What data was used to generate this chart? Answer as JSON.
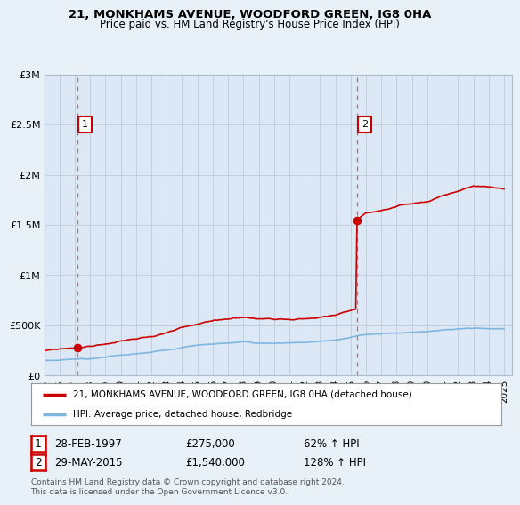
{
  "title1": "21, MONKHAMS AVENUE, WOODFORD GREEN, IG8 0HA",
  "title2": "Price paid vs. HM Land Registry's House Price Index (HPI)",
  "legend_line1": "21, MONKHAMS AVENUE, WOODFORD GREEN, IG8 0HA (detached house)",
  "legend_line2": "HPI: Average price, detached house, Redbridge",
  "annotation1_label": "1",
  "annotation1_date": "28-FEB-1997",
  "annotation1_price": "£275,000",
  "annotation1_hpi": "62% ↑ HPI",
  "annotation2_label": "2",
  "annotation2_date": "29-MAY-2015",
  "annotation2_price": "£1,540,000",
  "annotation2_hpi": "128% ↑ HPI",
  "footer": "Contains HM Land Registry data © Crown copyright and database right 2024.\nThis data is licensed under the Open Government Licence v3.0.",
  "sale1_year": 1997.15,
  "sale1_value": 275000,
  "sale2_year": 2015.4,
  "sale2_value": 1540000,
  "hpi_color": "#7eb6e0",
  "price_color": "#cc0000",
  "background_color": "#e8f0f8",
  "plot_bg_color": "#dce8f5",
  "ylim": [
    0,
    3000000
  ],
  "xlim_start": 1995,
  "xlim_end": 2025.5,
  "yticks": [
    0,
    500000,
    1000000,
    1500000,
    2000000,
    2500000,
    3000000
  ],
  "ytick_labels": [
    "£0",
    "£500K",
    "£1M",
    "£1.5M",
    "£2M",
    "£2.5M",
    "£3M"
  ],
  "xticks": [
    1995,
    1996,
    1997,
    1998,
    1999,
    2000,
    2001,
    2002,
    2003,
    2004,
    2005,
    2006,
    2007,
    2008,
    2009,
    2010,
    2011,
    2012,
    2013,
    2014,
    2015,
    2016,
    2017,
    2018,
    2019,
    2020,
    2021,
    2022,
    2023,
    2024,
    2025
  ]
}
